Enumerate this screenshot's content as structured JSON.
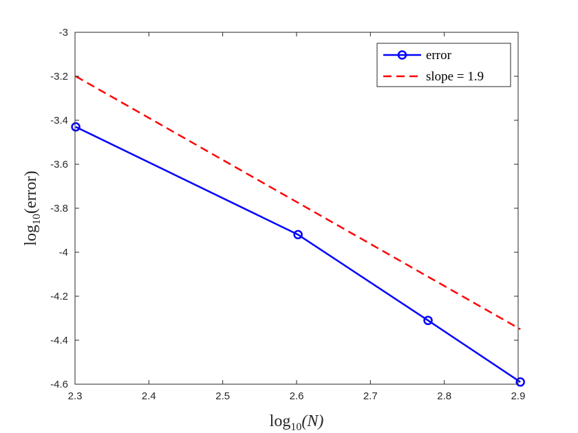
{
  "chart_data": {
    "type": "line",
    "xlabel": {
      "base": "log",
      "sub": "10",
      "arg": "(N)"
    },
    "ylabel": {
      "base": "log",
      "sub": "10",
      "arg": "(error)"
    },
    "xlim": [
      2.3,
      2.9
    ],
    "ylim": [
      -4.6,
      -3.0
    ],
    "xticks": [
      2.3,
      2.4,
      2.5,
      2.6,
      2.7,
      2.8,
      2.9
    ],
    "xtick_labels": [
      "2.3",
      "2.4",
      "2.5",
      "2.6",
      "2.7",
      "2.8",
      "2.9"
    ],
    "yticks": [
      -3.0,
      -3.2,
      -3.4,
      -3.6,
      -3.8,
      -4.0,
      -4.2,
      -4.4,
      -4.6
    ],
    "ytick_labels": [
      "-3",
      "-3.2",
      "-3.4",
      "-3.6",
      "-3.8",
      "-4",
      "-4.2",
      "-4.4",
      "-4.6"
    ],
    "grid": false,
    "legend_position": "top-right",
    "series": [
      {
        "name": "error",
        "color": "#0000ff",
        "style": "solid",
        "marker": "circle",
        "x": [
          2.301,
          2.602,
          2.778,
          2.903
        ],
        "y": [
          -3.43,
          -3.92,
          -4.31,
          -4.59
        ]
      },
      {
        "name": "slope = 1.9",
        "color": "#ff0000",
        "style": "dashed",
        "marker": "none",
        "x": [
          2.301,
          2.903
        ],
        "y": [
          -3.2,
          -4.35
        ]
      }
    ]
  }
}
